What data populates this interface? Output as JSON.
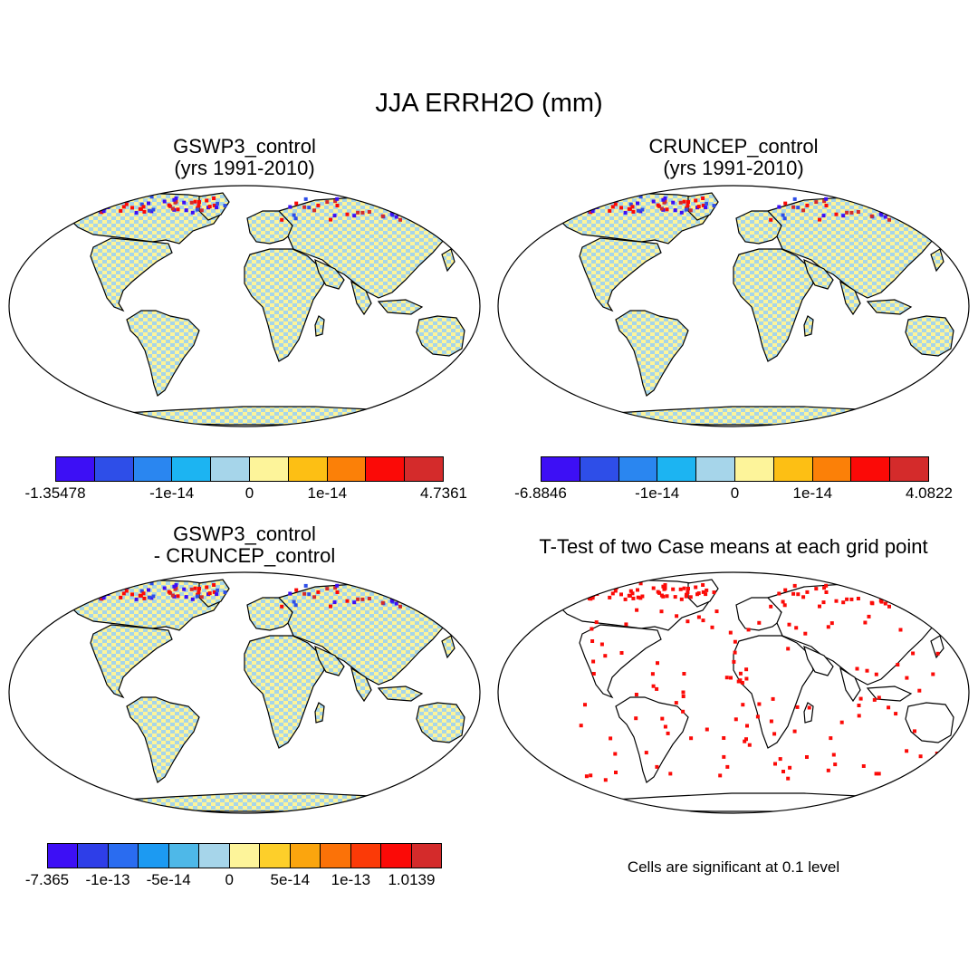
{
  "figure": {
    "title": "JJA ERRH2O (mm)"
  },
  "panels": [
    {
      "line1": "GSWP3_control",
      "line2": "(yrs 1991-2010)"
    },
    {
      "line1": "CRUNCEP_control",
      "line2": "(yrs 1991-2010)"
    },
    {
      "line1": "GSWP3_control",
      "line2": "- CRUNCEP_control"
    },
    {
      "line1": "T-Test of two Case means at each grid point"
    }
  ],
  "colorbars": [
    {
      "colors": [
        "#3d0ff5",
        "#2e4ee8",
        "#2a86f0",
        "#1cb4f2",
        "#a6d5ea",
        "#fdf49a",
        "#fdbf14",
        "#fb8008",
        "#fb0a07",
        "#d42b2b"
      ],
      "labels": [
        {
          "text": "-1.35478",
          "boundary": 0
        },
        {
          "text": "-1e-14",
          "boundary": 3
        },
        {
          "text": "0",
          "boundary": 5
        },
        {
          "text": "1e-14",
          "boundary": 7
        },
        {
          "text": "4.7361",
          "boundary": 10
        }
      ]
    },
    {
      "colors": [
        "#3d0ff5",
        "#2e4ee8",
        "#2a86f0",
        "#1cb4f2",
        "#a6d5ea",
        "#fdf49a",
        "#fdbf14",
        "#fb8008",
        "#fb0a07",
        "#d42b2b"
      ],
      "labels": [
        {
          "text": "-6.8846",
          "boundary": 0
        },
        {
          "text": "-1e-14",
          "boundary": 3
        },
        {
          "text": "0",
          "boundary": 5
        },
        {
          "text": "1e-14",
          "boundary": 7
        },
        {
          "text": "4.0822",
          "boundary": 10
        }
      ]
    },
    {
      "colors": [
        "#3d0ff5",
        "#2e3ee8",
        "#2a6cf0",
        "#1c9af2",
        "#4eb8e8",
        "#a6d5ea",
        "#fdf49a",
        "#fdcf2a",
        "#fba50e",
        "#fb7208",
        "#fb3a07",
        "#fb0a07",
        "#d42b2b"
      ],
      "labels": [
        {
          "text": "-7.365",
          "boundary": 0
        },
        {
          "text": "-1e-13",
          "boundary": 2
        },
        {
          "text": "-5e-14",
          "boundary": 4
        },
        {
          "text": "0",
          "boundary": 6
        },
        {
          "text": "5e-14",
          "boundary": 8
        },
        {
          "text": "1e-13",
          "boundary": 10
        },
        {
          "text": "1.0139",
          "boundary": 12
        }
      ]
    }
  ],
  "significance_note": "Cells are significant at 0.1 level",
  "colors": {
    "land_low": "#a6d5ea",
    "land_high": "#fdf49a",
    "significant": "#fb0a07",
    "coast": "#000000"
  }
}
